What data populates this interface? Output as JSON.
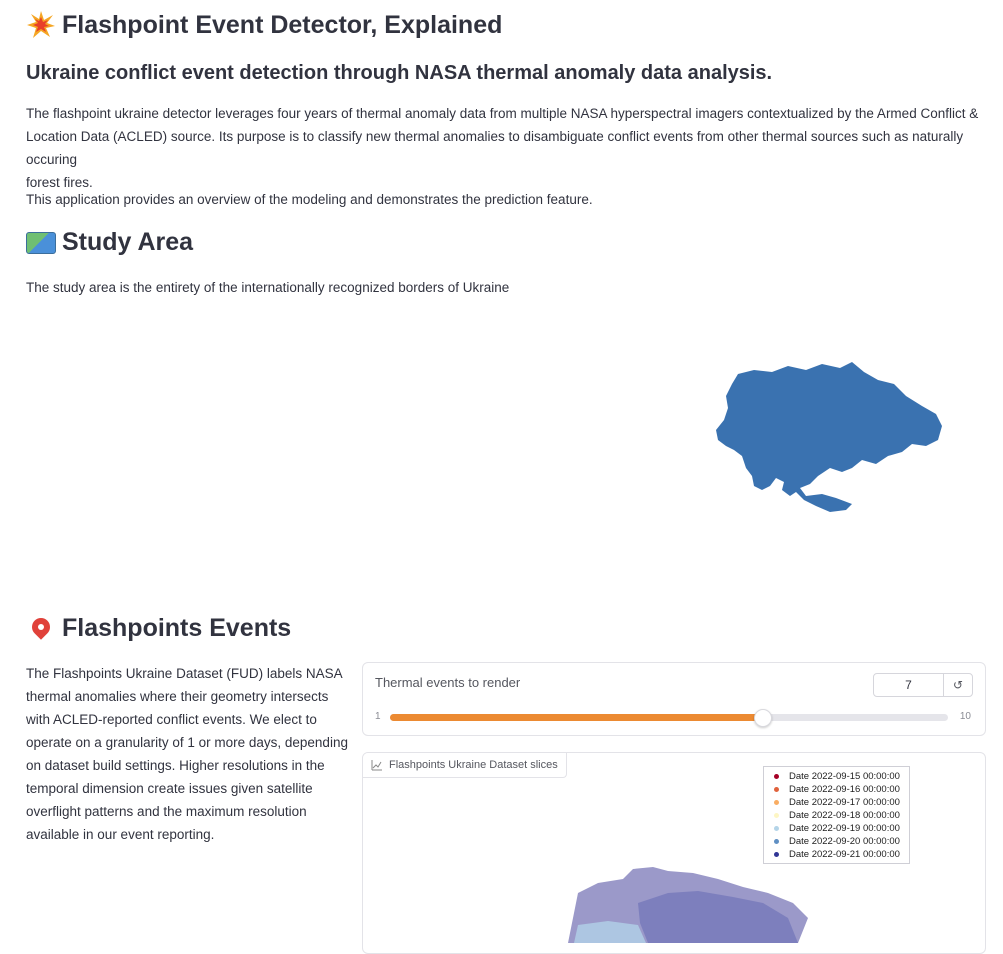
{
  "header": {
    "title": "Flashpoint Event Detector, Explained",
    "subtitle": "Ukraine conflict event detection through NASA thermal anomaly data analysis.",
    "intro_line1": "The flashpoint ukraine detector leverages four years of thermal anomaly data from multiple NASA hyperspectral imagers contextualized by the Armed Conflict &",
    "intro_line2": "Location Data (ACLED) source. Its purpose is to classify new thermal anomalies to disambiguate conflict events from other thermal sources such as naturally occuring",
    "intro_line3": "forest fires.",
    "intro2": "This application provides an overview of the modeling and demonstrates the prediction feature."
  },
  "study_area": {
    "title": "Study Area",
    "icon": "world-map-icon",
    "text": "The study area is the entirety of the internationally recognized borders of Ukraine",
    "map_color": "#3a72b0"
  },
  "flashpoints": {
    "title": "Flashpoints Events",
    "icon": "pin-icon",
    "text_lines": [
      "The Flashpoints Ukraine Dataset (FUD) labels NASA",
      "thermal anomalies where their geometry intersects",
      "with ACLED-reported conflict events. We elect to",
      "operate on a granularity of 1 or more days, depending",
      "on dataset build settings. Higher resolutions in the",
      "temporal dimension create issues given satellite",
      "overflight patterns and the maximum resolution",
      "available in our event reporting."
    ]
  },
  "slider": {
    "label": "Thermal events to render",
    "value": "7",
    "min": "1",
    "max": "10",
    "fraction": 0.6667,
    "accent": "#ec8a32"
  },
  "chart": {
    "tab_label": "Flashpoints Ukraine Dataset slices",
    "tab_icon": "chart-icon"
  },
  "chart_data": {
    "type": "map",
    "legend": [
      {
        "label": "Date 2022-09-15 00:00:00",
        "color": "#a50026"
      },
      {
        "label": "Date 2022-09-16 00:00:00",
        "color": "#e0623c"
      },
      {
        "label": "Date 2022-09-17 00:00:00",
        "color": "#f9ad63"
      },
      {
        "label": "Date 2022-09-18 00:00:00",
        "color": "#fdf6c4"
      },
      {
        "label": "Date 2022-09-19 00:00:00",
        "color": "#b4d4e8"
      },
      {
        "label": "Date 2022-09-20 00:00:00",
        "color": "#5f8fc3"
      },
      {
        "label": "Date 2022-09-21 00:00:00",
        "color": "#313695"
      }
    ]
  }
}
